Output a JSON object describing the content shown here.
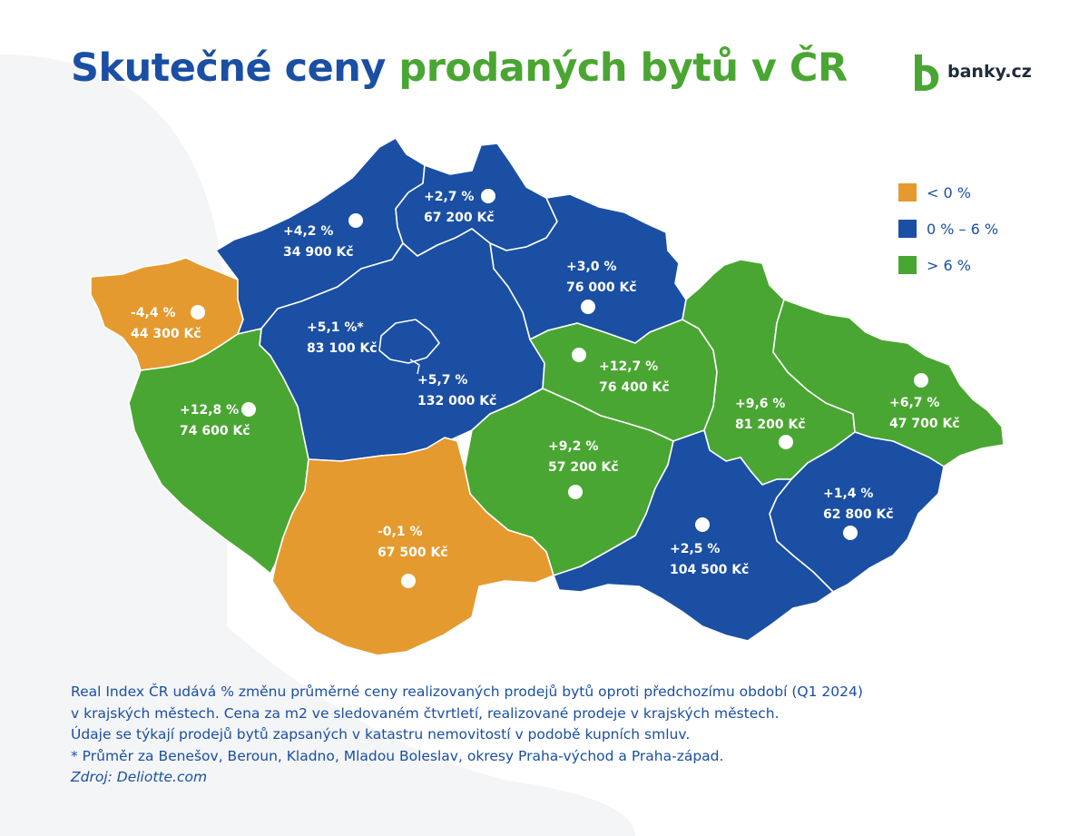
{
  "title": {
    "part1": "Skutečné ceny",
    "part2": "prodaných bytů v ČR"
  },
  "logo": {
    "text": "banky.cz",
    "icon": "banky-logo-icon"
  },
  "colors": {
    "negative": "#e59a2f",
    "low": "#1a4fa3",
    "high": "#4aa632",
    "title_blue": "#1a4fa3",
    "title_green": "#4aa632"
  },
  "legend": [
    {
      "label": "< 0 %",
      "color": "#e59a2f"
    },
    {
      "label": "0 % – 6 %",
      "color": "#1a4fa3"
    },
    {
      "label": "> 6 %",
      "color": "#4aa632"
    }
  ],
  "regions": [
    {
      "change": "-4,4 %",
      "price": "44 300 Kč",
      "color": "#e59a2f"
    },
    {
      "change": "+4,2 %",
      "price": "34 900 Kč",
      "color": "#1a4fa3"
    },
    {
      "change": "+2,7 %",
      "price": "67 200 Kč",
      "color": "#1a4fa3"
    },
    {
      "change": "+3,0 %",
      "price": "76 000 Kč",
      "color": "#1a4fa3"
    },
    {
      "change": "+5,1 %*",
      "price": "83 100 Kč",
      "color": "#1a4fa3"
    },
    {
      "change": "+5,7 %",
      "price": "132 000 Kč",
      "color": "#1a4fa3"
    },
    {
      "change": "+12,8 %",
      "price": "74 600 Kč",
      "color": "#4aa632"
    },
    {
      "change": "+12,7 %",
      "price": "76 400 Kč",
      "color": "#4aa632"
    },
    {
      "change": "+9,2 %",
      "price": "57 200 Kč",
      "color": "#4aa632"
    },
    {
      "change": "-0,1 %",
      "price": "67 500 Kč",
      "color": "#e59a2f"
    },
    {
      "change": "+9,6 %",
      "price": "81 200 Kč",
      "color": "#4aa632"
    },
    {
      "change": "+6,7 %",
      "price": "47 700 Kč",
      "color": "#4aa632"
    },
    {
      "change": "+1,4 %",
      "price": "62 800 Kč",
      "color": "#1a4fa3"
    },
    {
      "change": "+2,5 %",
      "price": "104 500 Kč",
      "color": "#1a4fa3"
    }
  ],
  "footer": {
    "line1": "Real Index ČR udává % změnu průměrné ceny realizovaných prodejů bytů oproti předchozímu období (Q1 2024)",
    "line2": "v krajských městech. Cena za m2 ve sledovaném čtvrtletí, realizované prodeje v krajských městech.",
    "line3": "Údaje se týkají prodejů bytů zapsaných v katastru nemovitostí v podobě kupních smluv.",
    "line4": "* Průměr za Benešov, Beroun, Kladno, Mladou Boleslav, okresy Praha-východ a Praha-západ.",
    "source": "Zdroj: Deliotte.com"
  }
}
